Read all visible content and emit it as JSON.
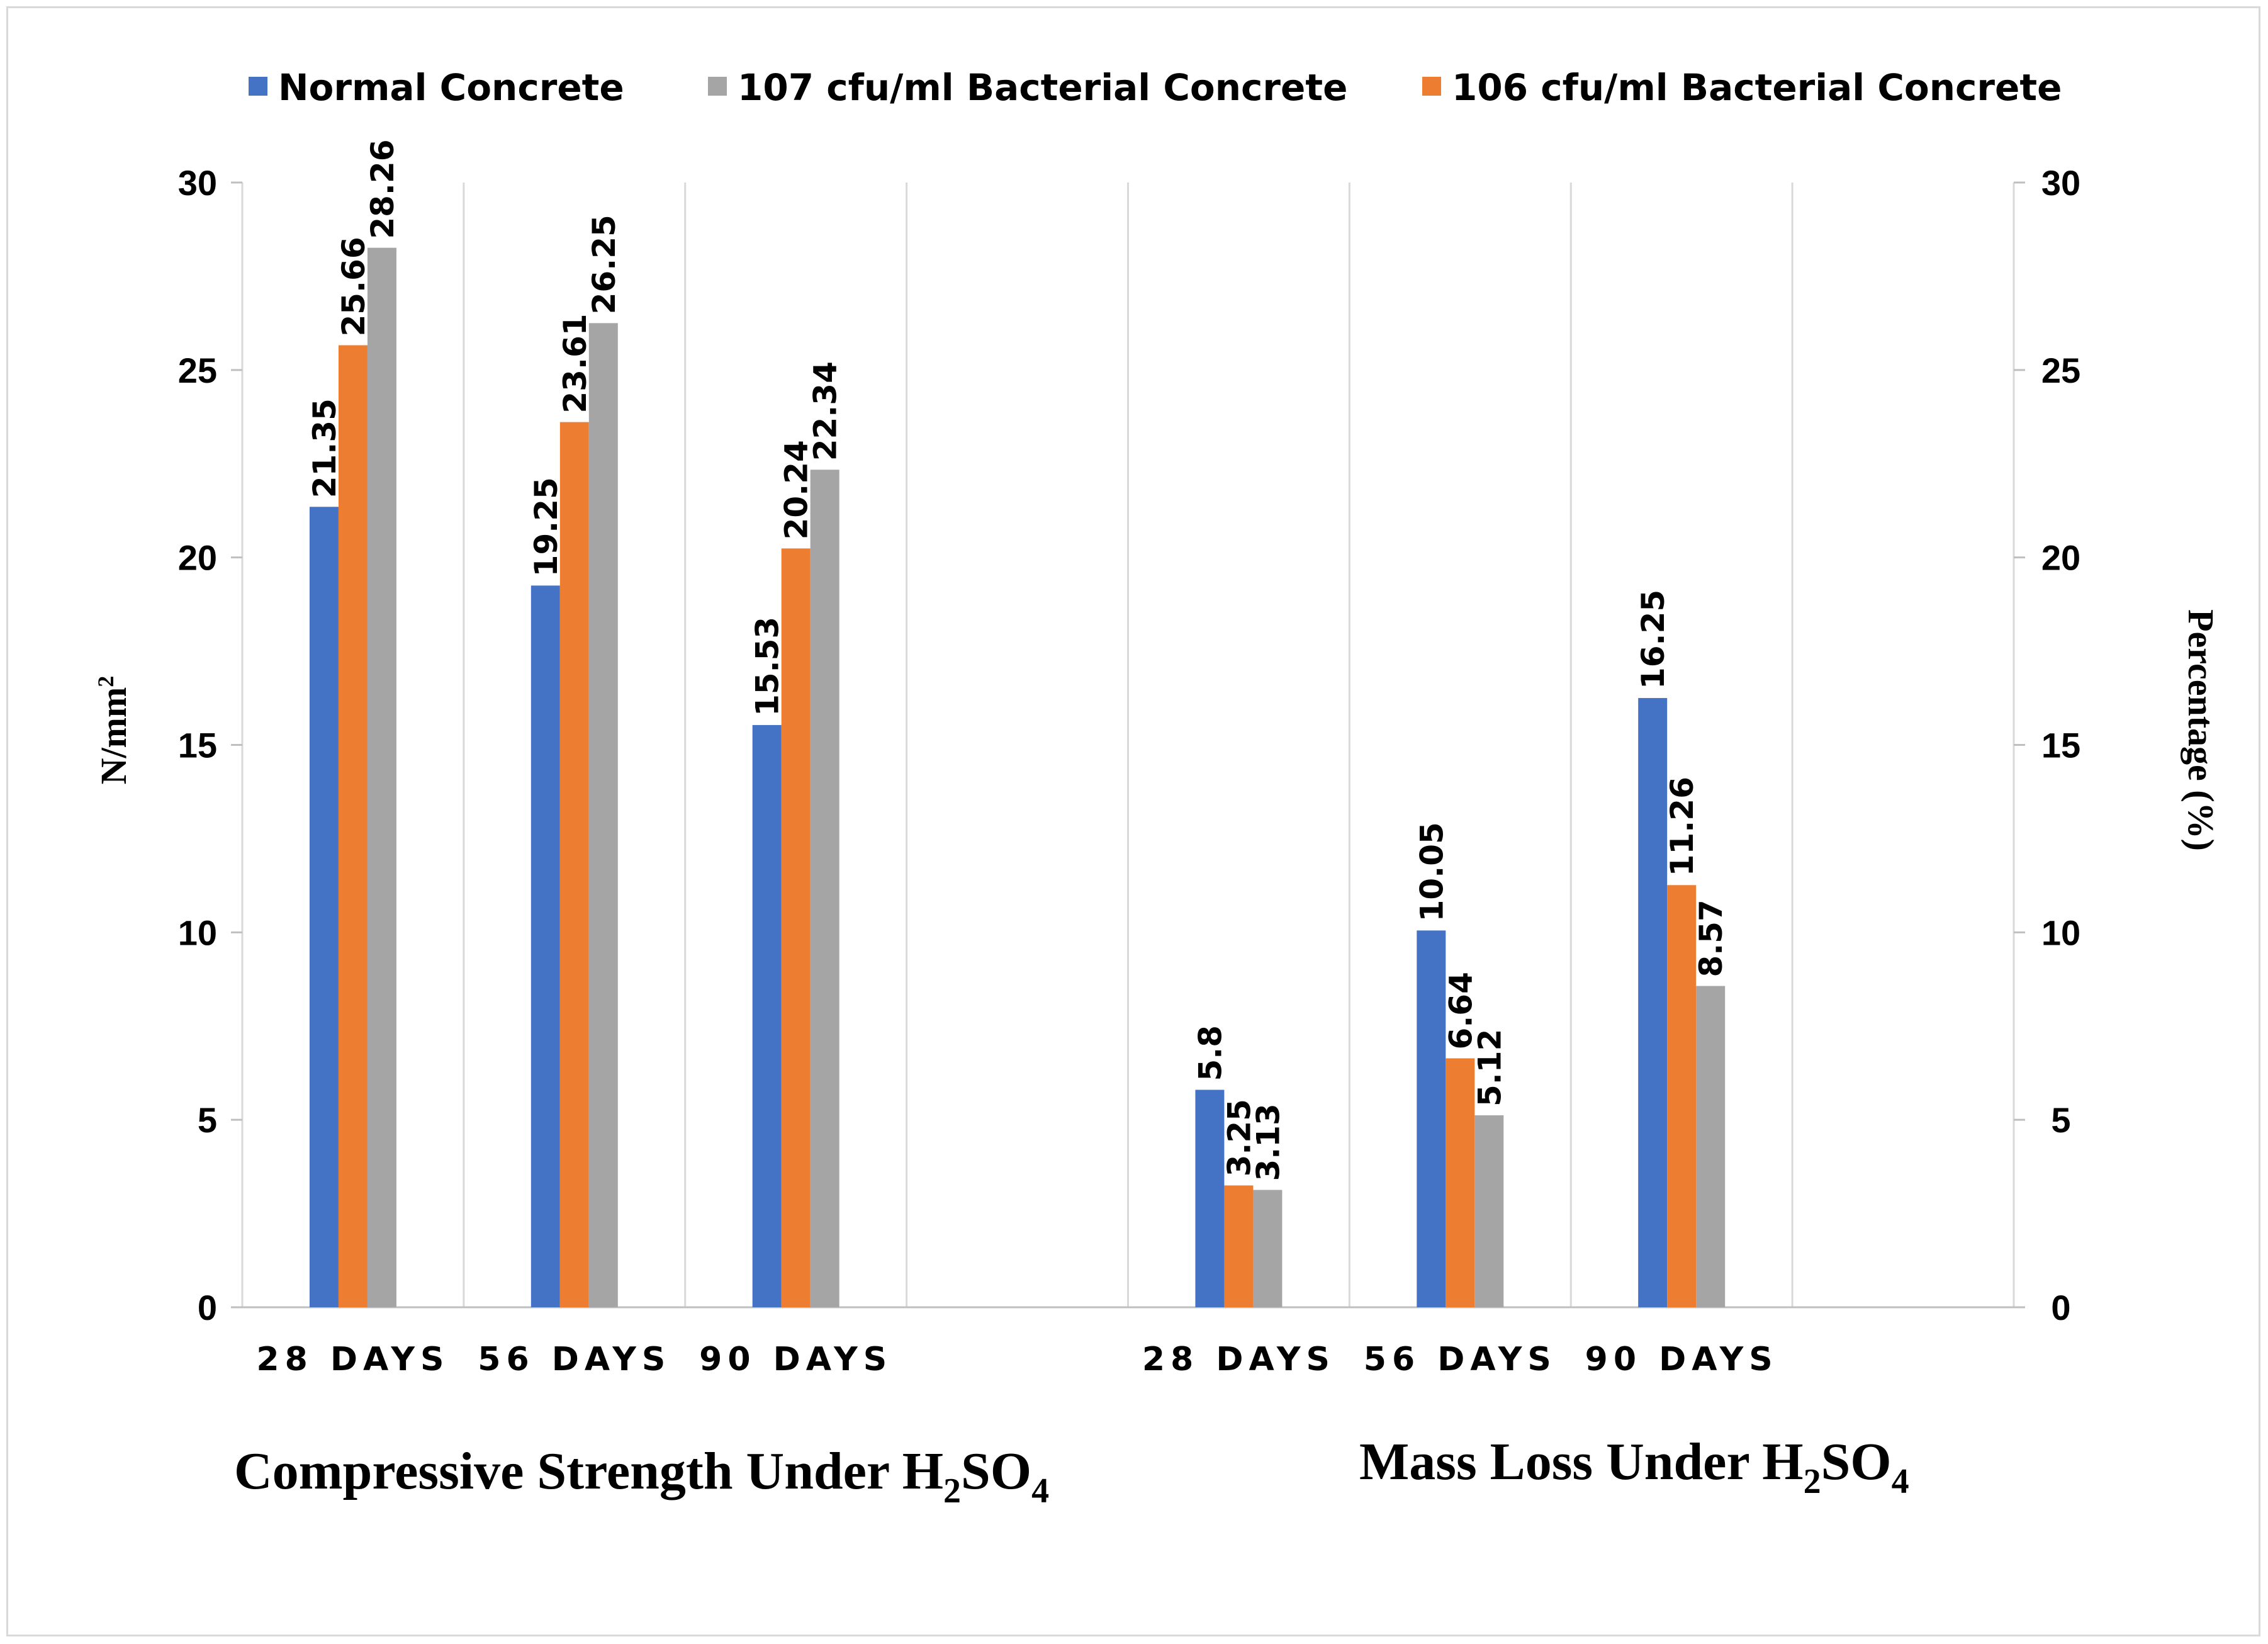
{
  "chart_data": {
    "type": "bar",
    "legend_position": "top",
    "series": [
      {
        "name": "Normal Concrete",
        "color": "#4472c4"
      },
      {
        "name": "107 cfu/ml Bacterial Concrete",
        "color": "#a5a5a5"
      },
      {
        "name": "106 cfu/ml Bacterial Concrete",
        "color": "#ed7d31"
      }
    ],
    "y_left": {
      "label": "N/mm²",
      "label_base": "N/mm",
      "label_sup": "2",
      "ylim": [
        0,
        30
      ],
      "ticks": [
        "0",
        "5",
        "10",
        "15",
        "20",
        "25",
        "30"
      ]
    },
    "y_right": {
      "label": "Percentage (%)",
      "ylim": [
        0,
        30
      ],
      "ticks": [
        "0",
        "5",
        "10",
        "15",
        "20",
        "25",
        "30"
      ]
    },
    "groups": [
      {
        "title": "Compressive Strength Under H2SO4",
        "title_main": "Compressive Strength Under H",
        "title_sub1": "2",
        "title_mid": "SO",
        "title_sub2": "4",
        "axis": "left",
        "categories": [
          "28 DAYS",
          "56 DAYS",
          "90 DAYS"
        ],
        "bar_order": [
          "Normal Concrete",
          "106 cfu/ml Bacterial Concrete",
          "107 cfu/ml Bacterial Concrete"
        ],
        "values": {
          "Normal Concrete": [
            21.35,
            19.25,
            15.53
          ],
          "106 cfu/ml Bacterial Concrete": [
            25.66,
            23.61,
            20.24
          ],
          "107 cfu/ml Bacterial Concrete": [
            28.26,
            26.25,
            22.34
          ]
        }
      },
      {
        "title": "Mass Loss Under H2SO4",
        "title_main": "Mass Loss Under H",
        "title_sub1": "2",
        "title_mid": "SO",
        "title_sub2": "4",
        "axis": "right",
        "categories": [
          "28 DAYS",
          "56 DAYS",
          "90 DAYS"
        ],
        "bar_order": [
          "Normal Concrete",
          "106 cfu/ml Bacterial Concrete",
          "107 cfu/ml Bacterial Concrete"
        ],
        "values": {
          "Normal Concrete": [
            5.8,
            10.05,
            16.25
          ],
          "106 cfu/ml Bacterial Concrete": [
            3.25,
            6.64,
            11.26
          ],
          "107 cfu/ml Bacterial Concrete": [
            3.13,
            5.12,
            8.57
          ]
        }
      }
    ],
    "grid": true
  }
}
